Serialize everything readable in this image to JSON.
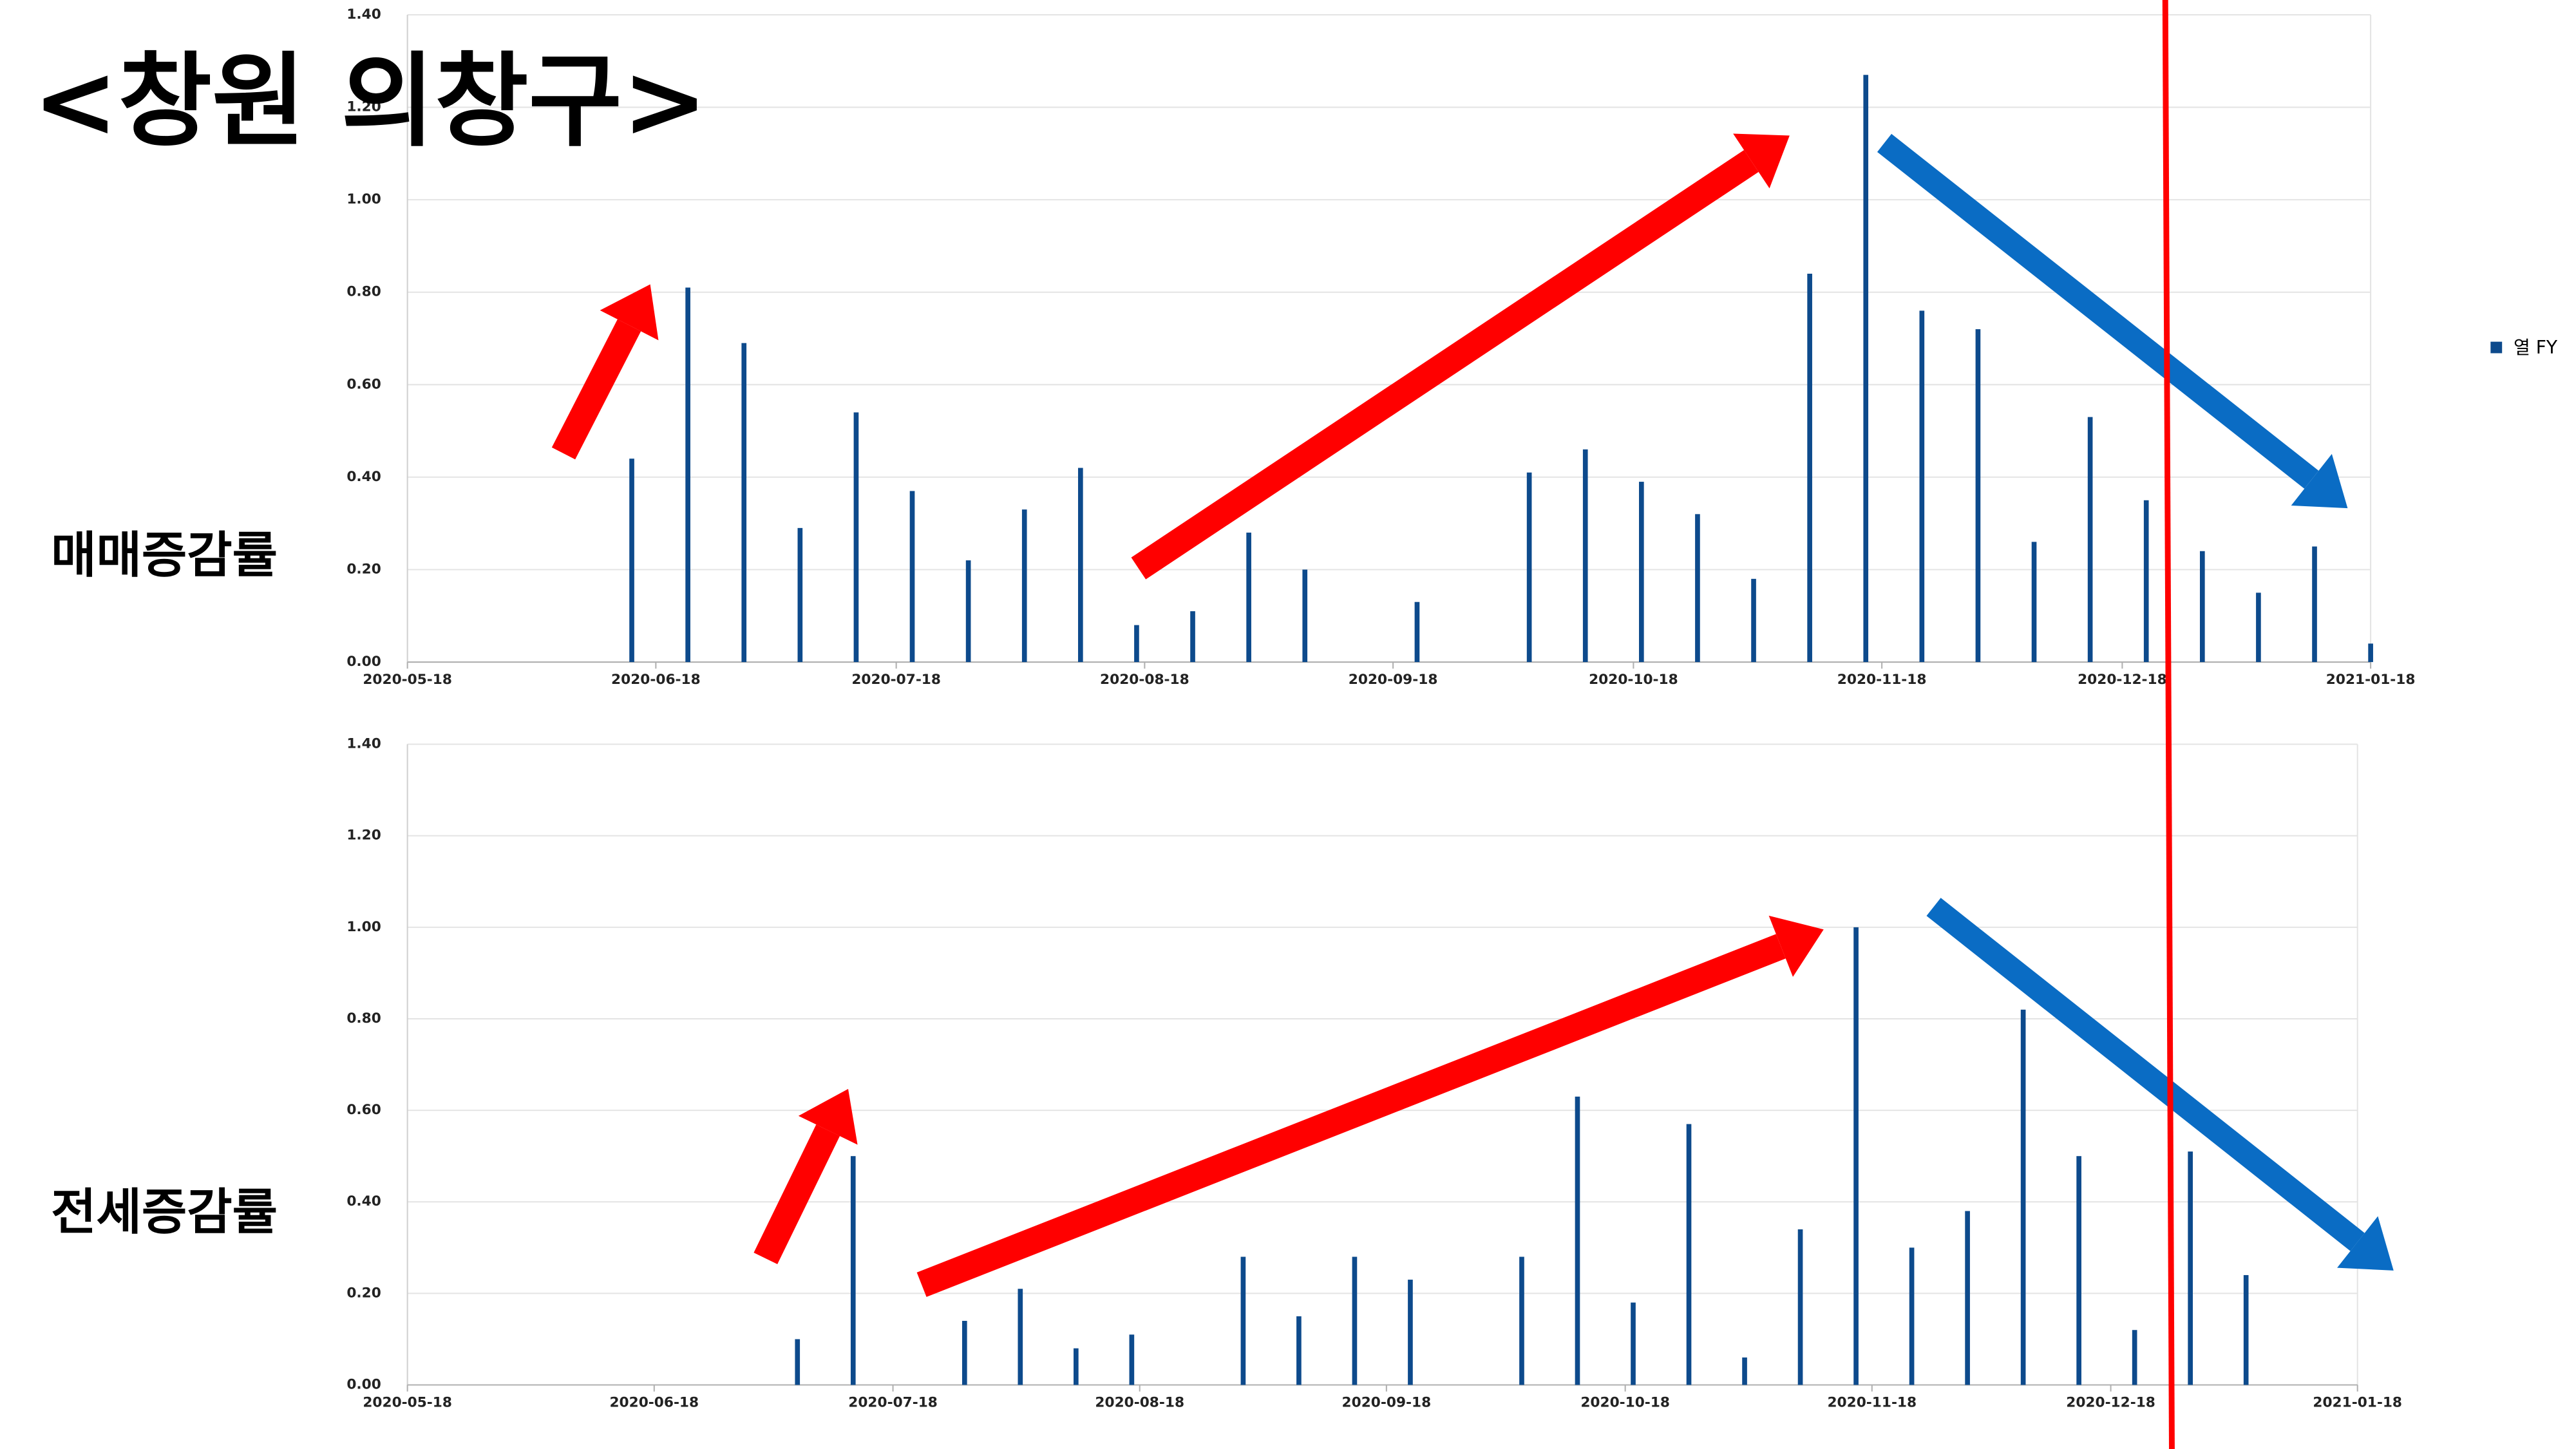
{
  "title": "<창원 의창구>",
  "chart_data": [
    {
      "type": "bar",
      "ylabel": "매매증감률",
      "x": [
        "2020-06-15",
        "2020-06-22",
        "2020-06-29",
        "2020-07-06",
        "2020-07-13",
        "2020-07-20",
        "2020-07-27",
        "2020-08-03",
        "2020-08-10",
        "2020-08-17",
        "2020-08-24",
        "2020-08-31",
        "2020-09-07",
        "2020-09-14",
        "2020-09-21",
        "2020-09-28",
        "2020-10-05",
        "2020-10-12",
        "2020-10-19",
        "2020-10-26",
        "2020-11-02",
        "2020-11-09",
        "2020-11-16",
        "2020-11-23",
        "2020-11-30",
        "2020-12-07",
        "2020-12-14",
        "2020-12-21",
        "2020-12-28",
        "2021-01-04",
        "2021-01-11",
        "2021-01-18"
      ],
      "series": [
        {
          "name": "열 FY",
          "color": "#0d4a8c",
          "values": [
            0.44,
            0.81,
            0.69,
            0.29,
            0.54,
            0.37,
            0.22,
            0.33,
            0.42,
            0.08,
            0.11,
            0.28,
            0.2,
            0,
            0.13,
            0,
            0.41,
            0.46,
            0.39,
            0.32,
            0.18,
            0.84,
            1.27,
            0.76,
            0.72,
            0.26,
            0.53,
            0.35,
            0.24,
            0.15,
            0.25,
            0.04
          ]
        }
      ],
      "xlim": [
        "2020-05-18",
        "2021-01-18"
      ],
      "xticks": [
        "2020-05-18",
        "2020-06-18",
        "2020-07-18",
        "2020-08-18",
        "2020-09-18",
        "2020-10-18",
        "2020-11-18",
        "2020-12-18",
        "2021-01-18"
      ],
      "ylim": [
        0,
        1.4
      ],
      "yticks": [
        {
          "value": 0,
          "label": "0.00"
        },
        {
          "value": 0.2,
          "label": "0.20"
        },
        {
          "value": 0.4,
          "label": "0.40"
        },
        {
          "value": 0.6,
          "label": "0.60"
        },
        {
          "value": 0.8,
          "label": "0.80"
        },
        {
          "value": 1,
          "label": "1.00"
        },
        {
          "value": 1.2,
          "label": "1.20"
        },
        {
          "value": 1.4,
          "label": "1.40"
        }
      ],
      "grid": true,
      "legend": "right"
    },
    {
      "type": "bar",
      "ylabel": "전세증감률",
      "x": [
        "2020-07-06",
        "2020-07-13",
        "2020-07-20",
        "2020-07-27",
        "2020-08-03",
        "2020-08-10",
        "2020-08-17",
        "2020-08-24",
        "2020-08-31",
        "2020-09-07",
        "2020-09-14",
        "2020-09-21",
        "2020-09-28",
        "2020-10-05",
        "2020-10-12",
        "2020-10-19",
        "2020-10-26",
        "2020-11-02",
        "2020-11-09",
        "2020-11-16",
        "2020-11-23",
        "2020-11-30",
        "2020-12-07",
        "2020-12-14",
        "2020-12-21",
        "2020-12-28",
        "2021-01-04",
        "2021-01-11"
      ],
      "series": [
        {
          "color": "#0d4a8c",
          "values": [
            0.1,
            0.5,
            0,
            0.14,
            0.21,
            0.08,
            0.11,
            0,
            0.28,
            0.15,
            0.28,
            0.23,
            0,
            0.28,
            0.63,
            0.18,
            0.57,
            0.06,
            0.34,
            1,
            0.3,
            0.38,
            0.82,
            0.5,
            0.12,
            0.51,
            0.24,
            0
          ]
        }
      ],
      "xlim": [
        "2020-05-18",
        "2021-01-18"
      ],
      "xticks": [
        "2020-05-18",
        "2020-06-18",
        "2020-07-18",
        "2020-08-18",
        "2020-09-18",
        "2020-10-18",
        "2020-11-18",
        "2020-12-18",
        "2021-01-18"
      ],
      "ylim": [
        0,
        1.4
      ],
      "yticks": [
        {
          "value": 0,
          "label": "0.00"
        },
        {
          "value": 0.2,
          "label": "0.20"
        },
        {
          "value": 0.4,
          "label": "0.40"
        },
        {
          "value": 0.6,
          "label": "0.60"
        },
        {
          "value": 0.8,
          "label": "0.80"
        },
        {
          "value": 1,
          "label": "1.00"
        },
        {
          "value": 1.2,
          "label": "1.20"
        },
        {
          "value": 1.4,
          "label": "1.40"
        }
      ],
      "grid": true
    }
  ]
}
